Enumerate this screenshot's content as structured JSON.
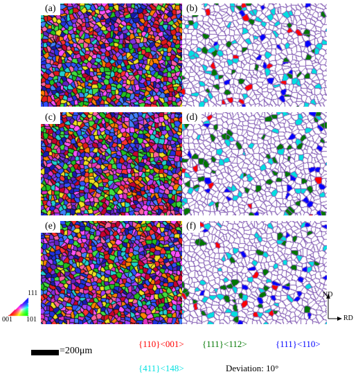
{
  "panels": [
    {
      "label": "(a)",
      "type": "ipf"
    },
    {
      "label": "(b)",
      "type": "texture"
    },
    {
      "label": "(c)",
      "type": "ipf"
    },
    {
      "label": "(d)",
      "type": "texture"
    },
    {
      "label": "(e)",
      "type": "ipf"
    },
    {
      "label": "(f)",
      "type": "texture"
    }
  ],
  "ipf_legend": {
    "top": "111",
    "left": "001",
    "right": "101"
  },
  "axes": {
    "vertical": "ND",
    "horizontal": "RD"
  },
  "scale": {
    "text": "=200μm"
  },
  "texture_legend": [
    {
      "text": "{110}<001>",
      "color": "#ff0000"
    },
    {
      "text": "{111}<112>",
      "color": "#007700"
    },
    {
      "text": "{111}<110>",
      "color": "#0000ff"
    },
    {
      "text": "{411}<148>",
      "color": "#00e0e0"
    },
    {
      "text": "Deviation: 10°",
      "color": "#000000"
    }
  ]
}
